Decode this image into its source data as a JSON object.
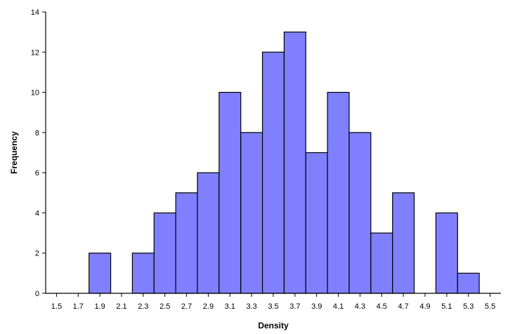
{
  "chart_data": {
    "type": "bar",
    "title": "",
    "xlabel": "Density",
    "ylabel": "Frequency",
    "bins": [
      {
        "start": 1.8,
        "end": 2.0,
        "value": 2
      },
      {
        "start": 2.2,
        "end": 2.4,
        "value": 2
      },
      {
        "start": 2.4,
        "end": 2.6,
        "value": 4
      },
      {
        "start": 2.6,
        "end": 2.8,
        "value": 5
      },
      {
        "start": 2.8,
        "end": 3.0,
        "value": 6
      },
      {
        "start": 3.0,
        "end": 3.2,
        "value": 10
      },
      {
        "start": 3.2,
        "end": 3.4,
        "value": 8
      },
      {
        "start": 3.4,
        "end": 3.6,
        "value": 12
      },
      {
        "start": 3.6,
        "end": 3.8,
        "value": 13
      },
      {
        "start": 3.8,
        "end": 4.0,
        "value": 7
      },
      {
        "start": 4.0,
        "end": 4.2,
        "value": 10
      },
      {
        "start": 4.2,
        "end": 4.4,
        "value": 8
      },
      {
        "start": 4.4,
        "end": 4.6,
        "value": 3
      },
      {
        "start": 4.6,
        "end": 4.8,
        "value": 5
      },
      {
        "start": 5.0,
        "end": 5.2,
        "value": 4
      },
      {
        "start": 5.2,
        "end": 5.4,
        "value": 1
      }
    ],
    "xlim": [
      1.4,
      5.6
    ],
    "ylim": [
      0,
      14
    ],
    "x_ticks": [
      "1.5",
      "1.7",
      "1.9",
      "2.1",
      "2.3",
      "2.5",
      "2.7",
      "2.9",
      "3.1",
      "3.3",
      "3.5",
      "3.7",
      "3.9",
      "4.1",
      "4.3",
      "4.5",
      "4.7",
      "4.9",
      "5.1",
      "5.3",
      "5.5"
    ],
    "y_ticks": [
      "0",
      "2",
      "4",
      "6",
      "8",
      "10",
      "12",
      "14"
    ],
    "grid": false,
    "bar_color": "#8080ff",
    "bar_edge_color": "#000000"
  }
}
